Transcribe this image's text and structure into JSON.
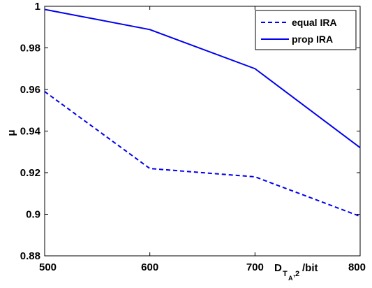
{
  "chart_data": {
    "type": "line",
    "x": [
      500,
      600,
      700,
      800
    ],
    "xlim": [
      500,
      800
    ],
    "ylim": [
      0.88,
      1
    ],
    "xticks": [
      500,
      600,
      700,
      800
    ],
    "yticks": [
      0.88,
      0.9,
      0.92,
      0.94,
      0.96,
      0.98,
      1
    ],
    "xtick_labels": [
      "500",
      "600",
      "700",
      "800"
    ],
    "ytick_labels": [
      "0.88",
      "0.9",
      "0.92",
      "0.94",
      "0.96",
      "0.98",
      "1"
    ],
    "xlabel": {
      "main": "D",
      "sub1": "T",
      "sub2": "A",
      "suffix": ",2",
      "unit": "/bit"
    },
    "ylabel": "μ",
    "grid": false,
    "legend_position": "top-right",
    "series": [
      {
        "name": "equal IRA",
        "values": [
          0.959,
          0.922,
          0.918,
          0.899
        ],
        "color": "#0000ee",
        "style": "dashed"
      },
      {
        "name": "prop IRA",
        "values": [
          0.9985,
          0.9888,
          0.97,
          0.932
        ],
        "color": "#0000ee",
        "style": "solid"
      }
    ]
  }
}
